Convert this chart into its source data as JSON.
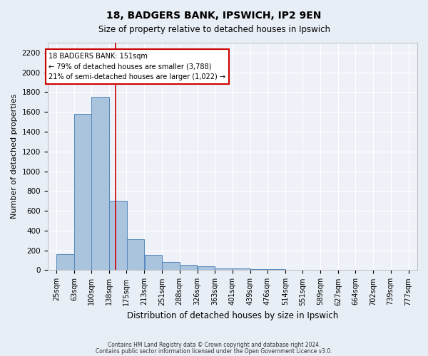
{
  "title": "18, BADGERS BANK, IPSWICH, IP2 9EN",
  "subtitle": "Size of property relative to detached houses in Ipswich",
  "xlabel": "Distribution of detached houses by size in Ipswich",
  "ylabel": "Number of detached properties",
  "bar_color": "#aac4de",
  "bar_edge_color": "#5588bb",
  "background_color": "#e8eef5",
  "plot_bg_color": "#eef2f8",
  "grid_color": "#ffffff",
  "red_line_x": 151,
  "annotation_title": "18 BADGERS BANK: 151sqm",
  "annotation_line1": "← 79% of detached houses are smaller (3,788)",
  "annotation_line2": "21% of semi-detached houses are larger (1,022) →",
  "annotation_box_color": "#ffffff",
  "annotation_border_color": "#cc0000",
  "red_line_color": "#cc0000",
  "footer1": "Contains HM Land Registry data © Crown copyright and database right 2024.",
  "footer2": "Contains public sector information licensed under the Open Government Licence v3.0.",
  "bin_edges": [
    25,
    63,
    100,
    138,
    175,
    213,
    251,
    288,
    326,
    363,
    401,
    439,
    476,
    514,
    551,
    589,
    627,
    664,
    702,
    739,
    777
  ],
  "bin_labels": [
    "25sqm",
    "63sqm",
    "100sqm",
    "138sqm",
    "175sqm",
    "213sqm",
    "251sqm",
    "288sqm",
    "326sqm",
    "363sqm",
    "401sqm",
    "439sqm",
    "476sqm",
    "514sqm",
    "551sqm",
    "589sqm",
    "627sqm",
    "664sqm",
    "702sqm",
    "739sqm",
    "777sqm"
  ],
  "bar_heights": [
    160,
    1580,
    1750,
    700,
    310,
    155,
    80,
    55,
    40,
    20,
    20,
    10,
    10,
    0,
    0,
    0,
    0,
    0,
    0,
    0
  ],
  "ylim": [
    0,
    2300
  ],
  "yticks": [
    0,
    200,
    400,
    600,
    800,
    1000,
    1200,
    1400,
    1600,
    1800,
    2000,
    2200
  ]
}
